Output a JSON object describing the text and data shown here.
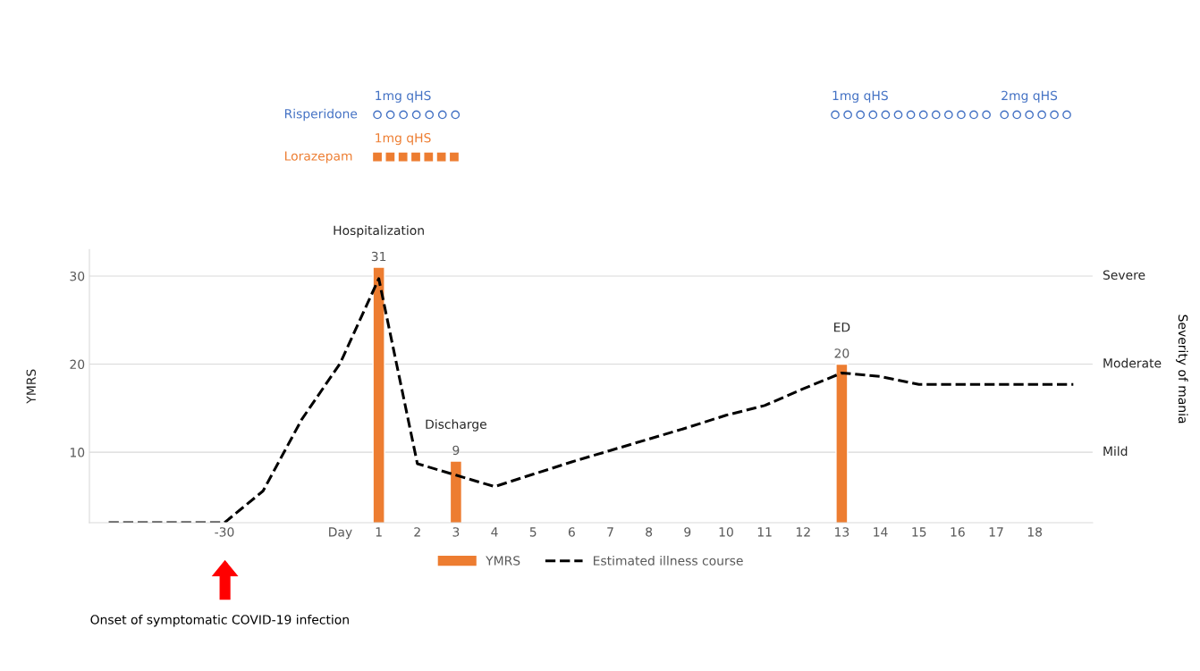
{
  "chart_data": {
    "type": "bar",
    "categories": [
      null,
      null,
      null,
      "-30",
      null,
      null,
      "Day",
      "1",
      "2",
      "3",
      "4",
      "5",
      "6",
      "7",
      "8",
      "9",
      "10",
      "11",
      "12",
      "13",
      "14",
      "15",
      "16",
      "17",
      "18",
      null
    ],
    "series": [
      {
        "name": "YMRS",
        "color": "#ed7d31",
        "values": [
          null,
          null,
          null,
          null,
          null,
          null,
          null,
          31,
          null,
          9,
          null,
          null,
          null,
          null,
          null,
          null,
          null,
          null,
          null,
          20,
          null,
          null,
          null,
          null,
          null,
          null
        ],
        "value_labels": [
          null,
          null,
          null,
          null,
          null,
          null,
          null,
          "31",
          null,
          "9",
          null,
          null,
          null,
          null,
          null,
          null,
          null,
          null,
          null,
          "20",
          null,
          null,
          null,
          null,
          null,
          null
        ]
      },
      {
        "name": "Estimated illness course",
        "type": "line",
        "color": "#000000",
        "line_style": "dashed",
        "values": [
          2,
          2,
          2,
          2,
          5.6,
          13.7,
          20.1,
          29.7,
          8.7,
          7.4,
          6.1,
          7.5,
          8.9,
          10.2,
          11.5,
          12.8,
          14.2,
          15.3,
          17.2,
          19.0,
          18.6,
          17.7,
          17.7,
          17.7,
          17.7,
          17.7
        ]
      }
    ],
    "ylabel": "YMRS",
    "ylim": [
      2,
      33
    ],
    "yticks": [
      10,
      20,
      30
    ],
    "ref_lines": [
      {
        "axis": "y",
        "value": 10,
        "label": "Mild",
        "color": "#d9d9d9"
      },
      {
        "axis": "y",
        "value": 20,
        "label": "Moderate",
        "color": "#d9d9d9"
      },
      {
        "axis": "y",
        "value": 30,
        "label": "Severe",
        "color": "#d9d9d9"
      }
    ],
    "legend": "bottom",
    "annotations": [
      "Risperidone",
      "1mg qHS",
      "Lorazepam",
      "1mg qHS",
      "1mg qHS",
      "2mg qHS",
      {
        "text": "Hospitalization",
        "x": "1",
        "y": 31
      },
      {
        "text": "Discharge",
        "x": "3",
        "y": 9
      },
      {
        "text": "ED",
        "x": "13",
        "y": 20
      },
      "Onset of symptomatic COVID-19 infection",
      "Severity of mania"
    ]
  }
}
